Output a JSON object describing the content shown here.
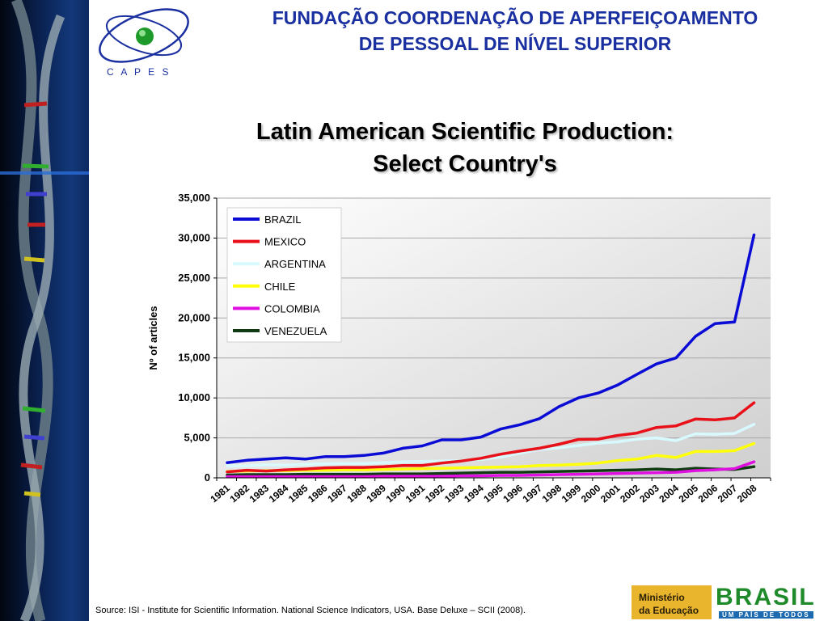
{
  "header": {
    "org_line_1": "FUNDAÇÃO COORDENAÇÃO DE APERFEIÇOAMENTO",
    "org_line_2": "DE PESSOAL DE NÍVEL SUPERIOR",
    "logo_text": "C A P E S"
  },
  "chart_title_line_1": "Latin American Scientific Production:",
  "chart_title_line_2": "Select Country's",
  "chart_data": {
    "type": "line",
    "ylabel": "Nº of articles",
    "xlabel": "",
    "ylim": [
      0,
      35000
    ],
    "yticks": [
      "0",
      "5,000",
      "10,000",
      "15,000",
      "20,000",
      "25,000",
      "30,000",
      "35,000"
    ],
    "categories": [
      "1981",
      "1982",
      "1983",
      "1984",
      "1985",
      "1986",
      "1987",
      "1988",
      "1989",
      "1990",
      "1991",
      "1992",
      "1993",
      "1994",
      "1995",
      "1996",
      "1997",
      "1998",
      "1999",
      "2000",
      "2001",
      "2002",
      "2003",
      "2004",
      "2005",
      "2006",
      "2007",
      "2008"
    ],
    "grid": true,
    "legend_position": "top-left",
    "series": [
      {
        "name": "BRAZIL",
        "color": "#0b0bd6",
        "values": [
          1900,
          2200,
          2350,
          2500,
          2350,
          2650,
          2650,
          2800,
          3100,
          3700,
          4000,
          4750,
          4750,
          5100,
          6100,
          6650,
          7400,
          8900,
          10000,
          10600,
          11600,
          12950,
          14250,
          15000,
          17700,
          19300,
          19500,
          30400
        ]
      },
      {
        "name": "MEXICO",
        "color": "#e8111a",
        "values": [
          750,
          950,
          850,
          1000,
          1100,
          1250,
          1300,
          1300,
          1400,
          1550,
          1550,
          1850,
          2100,
          2450,
          2950,
          3350,
          3700,
          4200,
          4800,
          4850,
          5300,
          5600,
          6300,
          6500,
          7350,
          7250,
          7500,
          9400
        ]
      },
      {
        "name": "ARGENTINA",
        "color": "#d8faff",
        "values": [
          1500,
          1500,
          1650,
          1600,
          1700,
          1750,
          1800,
          1800,
          1900,
          2000,
          2050,
          2100,
          2150,
          2300,
          2600,
          3100,
          3550,
          3750,
          4050,
          4350,
          4500,
          4850,
          5000,
          4650,
          5500,
          5450,
          5550,
          6700
        ]
      },
      {
        "name": "CHILE",
        "color": "#ffff0a",
        "values": [
          800,
          850,
          900,
          900,
          950,
          950,
          1000,
          1000,
          1050,
          1100,
          1150,
          1200,
          1250,
          1300,
          1350,
          1400,
          1550,
          1600,
          1700,
          1850,
          2150,
          2350,
          2800,
          2550,
          3300,
          3300,
          3400,
          4300
        ]
      },
      {
        "name": "COLOMBIA",
        "color": "#e010e0",
        "values": [
          150,
          150,
          150,
          150,
          150,
          150,
          150,
          150,
          200,
          200,
          200,
          200,
          250,
          250,
          300,
          300,
          350,
          400,
          450,
          500,
          550,
          600,
          650,
          700,
          900,
          1000,
          1150,
          2000
        ]
      },
      {
        "name": "VENEZUELA",
        "color": "#0f3a12",
        "values": [
          350,
          400,
          400,
          400,
          450,
          450,
          450,
          450,
          500,
          500,
          500,
          550,
          600,
          650,
          700,
          700,
          750,
          800,
          850,
          900,
          950,
          1000,
          1100,
          1000,
          1200,
          1100,
          1050,
          1400
        ]
      }
    ]
  },
  "footer": {
    "source": "Source: ISI - Institute for Scientific Information. National Science Indicators, USA. Base Deluxe – SCII (2008).",
    "ministry_line_1": "Ministério",
    "ministry_line_2": "da Educação",
    "brasil_text": "BRASIL",
    "brasil_slogan": "UM PAÍS DE TODOS"
  }
}
